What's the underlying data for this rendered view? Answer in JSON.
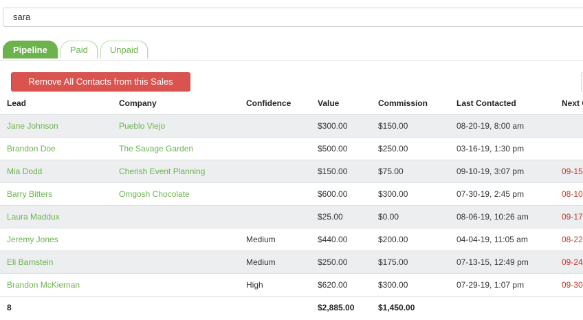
{
  "search": {
    "value": "sara"
  },
  "tabs": [
    {
      "label": "Pipeline",
      "active": true
    },
    {
      "label": "Paid",
      "active": false
    },
    {
      "label": "Unpaid",
      "active": false
    }
  ],
  "actions": {
    "remove_all_label": "Remove All Contacts from this Sales Pipeline"
  },
  "table": {
    "headers": {
      "lead": "Lead",
      "company": "Company",
      "confidence": "Confidence",
      "value": "Value",
      "commission": "Commission",
      "last_contacted": "Last Contacted",
      "next": "Next C"
    },
    "rows": [
      {
        "lead": "Jane Johnson",
        "company": "Pueblo Viejo",
        "confidence": "",
        "value": "$300.00",
        "commission": "$150.00",
        "last_contacted": "08-20-19, 8:00 am",
        "next": ""
      },
      {
        "lead": "Brandon Doe",
        "company": "The Savage Garden",
        "confidence": "",
        "value": "$500.00",
        "commission": "$250.00",
        "last_contacted": "03-16-19, 1:30 pm",
        "next": ""
      },
      {
        "lead": "Mia Dodd",
        "company": "Cherish Event Planning",
        "confidence": "",
        "value": "$150.00",
        "commission": "$75.00",
        "last_contacted": "09-10-19, 3:07 pm",
        "next": "09-15"
      },
      {
        "lead": "Barry Bitters",
        "company": "Omgosh Chocolate",
        "confidence": "",
        "value": "$600.00",
        "commission": "$300.00",
        "last_contacted": "07-30-19, 2:45 pm",
        "next": "08-10"
      },
      {
        "lead": "Laura Maddux",
        "company": "",
        "confidence": "",
        "value": "$25.00",
        "commission": "$0.00",
        "last_contacted": "08-06-19, 10:26 am",
        "next": "09-17"
      },
      {
        "lead": "Jeremy Jones",
        "company": "",
        "confidence": "Medium",
        "value": "$440.00",
        "commission": "$200.00",
        "last_contacted": "04-04-19, 11:05 am",
        "next": "08-22"
      },
      {
        "lead": "Eli Barnstein",
        "company": "",
        "confidence": "Medium",
        "value": "$250.00",
        "commission": "$175.00",
        "last_contacted": "07-13-15, 12:49 pm",
        "next": "09-24"
      },
      {
        "lead": "Brandon McKiernan",
        "company": "",
        "confidence": "High",
        "value": "$620.00",
        "commission": "$300.00",
        "last_contacted": "07-29-19, 1:07 pm",
        "next": "09-30"
      }
    ],
    "footer": {
      "count": "8",
      "value_total": "$2,885.00",
      "commission_total": "$1,450.00"
    }
  },
  "colors": {
    "accent": "#6cb34d",
    "danger": "#d9534f",
    "date_alert": "#c0392b",
    "row_alt": "#eceef0"
  }
}
